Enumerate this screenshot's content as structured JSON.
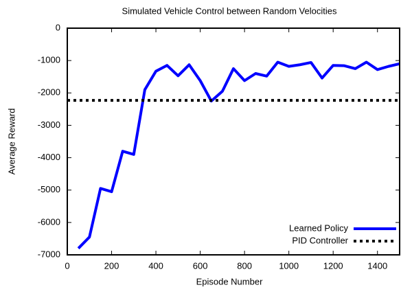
{
  "chart_data": {
    "type": "line",
    "title": "Simulated Vehicle Control between Random Velocities",
    "xlabel": "Episode Number",
    "ylabel": "Average Reward",
    "xlim": [
      0,
      1500
    ],
    "xticks": [
      0,
      200,
      400,
      600,
      800,
      1000,
      1200,
      1400
    ],
    "ylim": [
      -7000,
      0
    ],
    "yticks": [
      0,
      -1000,
      -2000,
      -3000,
      -4000,
      -5000,
      -6000,
      -7000
    ],
    "legend": "lower right",
    "series": [
      {
        "name": "Learned Policy",
        "color": "#0000ff",
        "style": "solid",
        "x": [
          50,
          100,
          150,
          200,
          250,
          300,
          350,
          400,
          450,
          500,
          550,
          600,
          650,
          700,
          750,
          800,
          850,
          900,
          950,
          1000,
          1050,
          1100,
          1150,
          1200,
          1250,
          1300,
          1350,
          1400,
          1450,
          1500
        ],
        "values": [
          -6800,
          -6450,
          -4950,
          -5050,
          -3800,
          -3900,
          -1900,
          -1330,
          -1150,
          -1470,
          -1130,
          -1620,
          -2250,
          -1950,
          -1250,
          -1620,
          -1400,
          -1480,
          -1050,
          -1180,
          -1130,
          -1060,
          -1540,
          -1150,
          -1160,
          -1250,
          -1050,
          -1280,
          -1180,
          -1100
        ]
      },
      {
        "name": "PID Controller",
        "color": "#000000",
        "style": "dotted",
        "x": [
          0,
          1500
        ],
        "values": [
          -2230,
          -2230
        ]
      }
    ]
  }
}
